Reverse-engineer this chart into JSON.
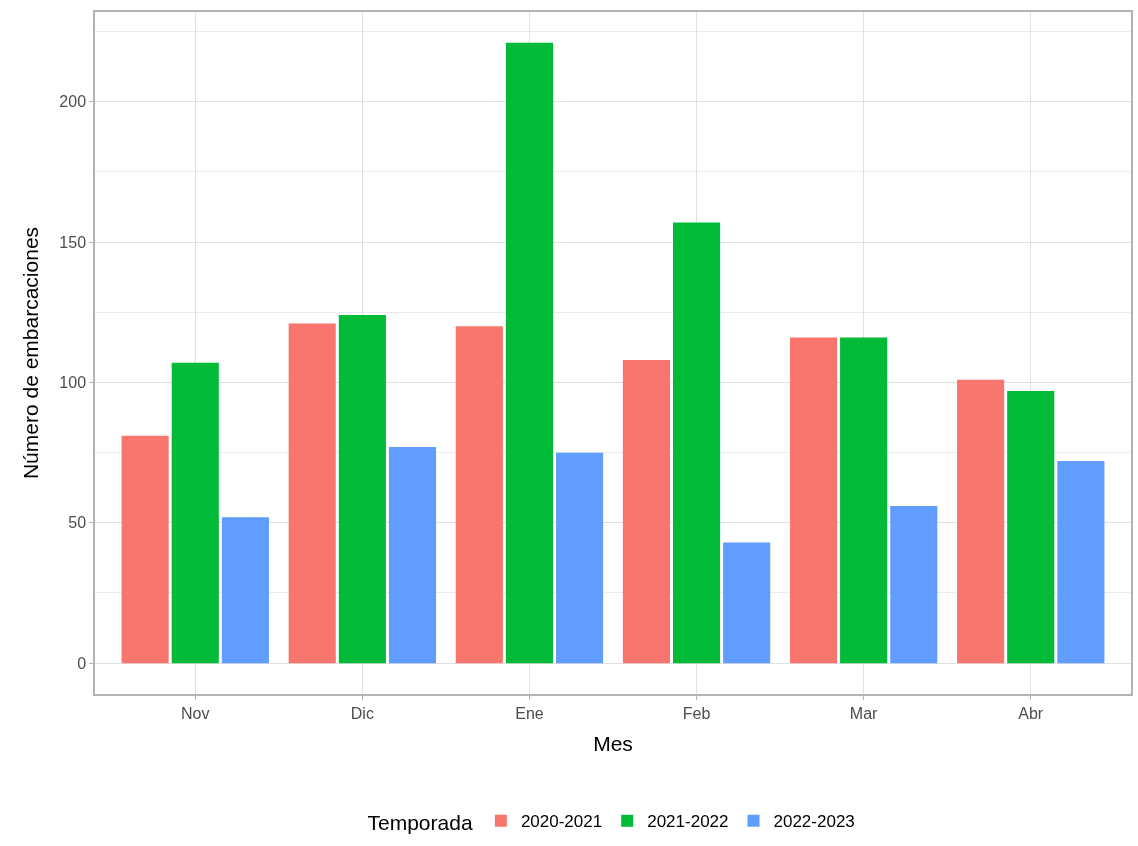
{
  "chart_data": {
    "type": "bar",
    "xlabel": "Mes",
    "ylabel": "Número de embarcaciones",
    "legend_title": "Temporada",
    "categories": [
      "Nov",
      "Dic",
      "Ene",
      "Feb",
      "Mar",
      "Abr"
    ],
    "series": [
      {
        "name": "2020-2021",
        "color": "#f8766d",
        "values": [
          81,
          121,
          120,
          108,
          116,
          101
        ]
      },
      {
        "name": "2021-2022",
        "color": "#00ba38",
        "values": [
          107,
          124,
          221,
          157,
          116,
          97
        ]
      },
      {
        "name": "2022-2023",
        "color": "#619cff",
        "values": [
          52,
          77,
          75,
          43,
          56,
          72
        ]
      }
    ],
    "ylim": [
      -11,
      232
    ],
    "yticks": [
      0,
      {
        "value": 25,
        "label": null
      },
      50,
      {
        "value": 75,
        "label": null
      },
      100,
      {
        "value": 125,
        "label": null
      },
      150,
      {
        "value": 175,
        "label": null
      },
      200,
      {
        "value": 225,
        "label": null
      }
    ],
    "grid": true,
    "legend": "bottom"
  }
}
